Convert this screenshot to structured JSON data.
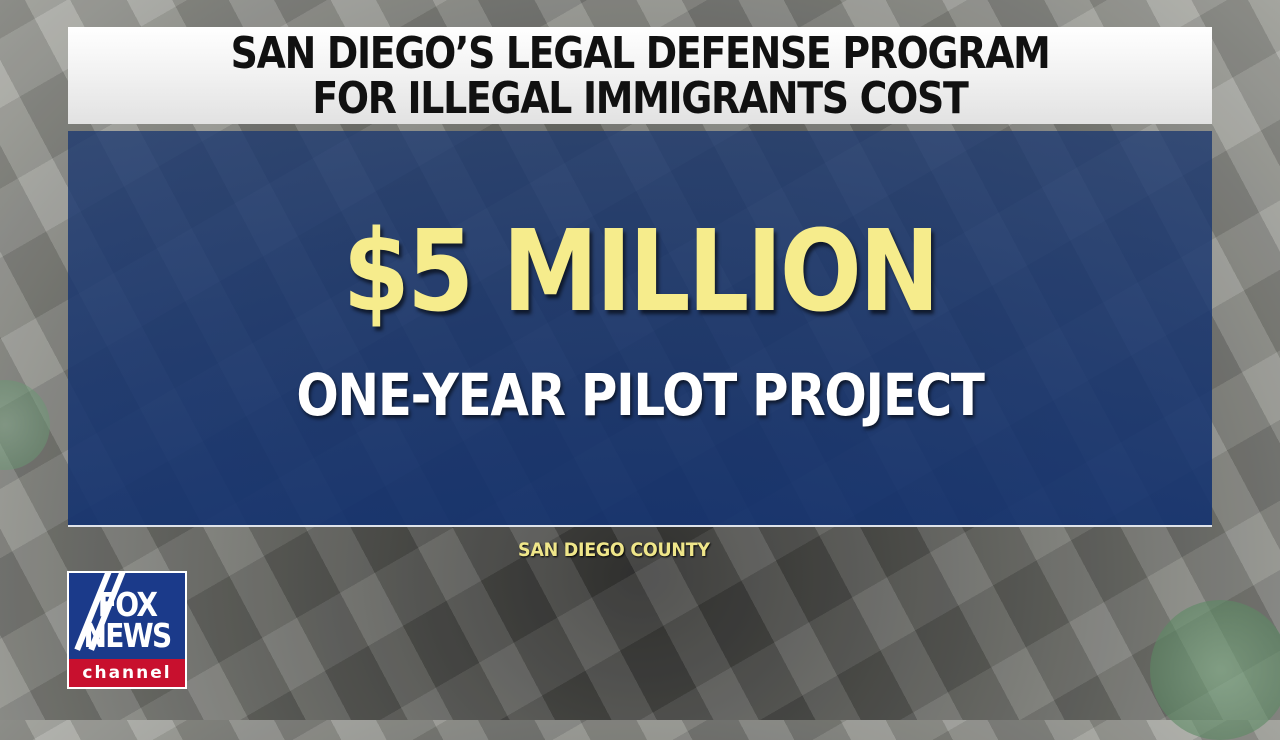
{
  "headline": {
    "line1": "SAN DIEGO’S LEGAL DEFENSE PROGRAM",
    "line2": "FOR ILLEGAL IMMIGRANTS COST"
  },
  "main": {
    "amount": "$5 MILLION",
    "subtitle": "ONE-YEAR PILOT PROJECT"
  },
  "source": "SAN DIEGO COUNTY",
  "logo": {
    "line1": "FOX",
    "line2": "NEWS",
    "line3": "channel"
  },
  "colors": {
    "panel": "#1e3a70",
    "amount": "#f6ec8c",
    "logo_blue": "#1b3a8a",
    "logo_red": "#c8102e"
  }
}
